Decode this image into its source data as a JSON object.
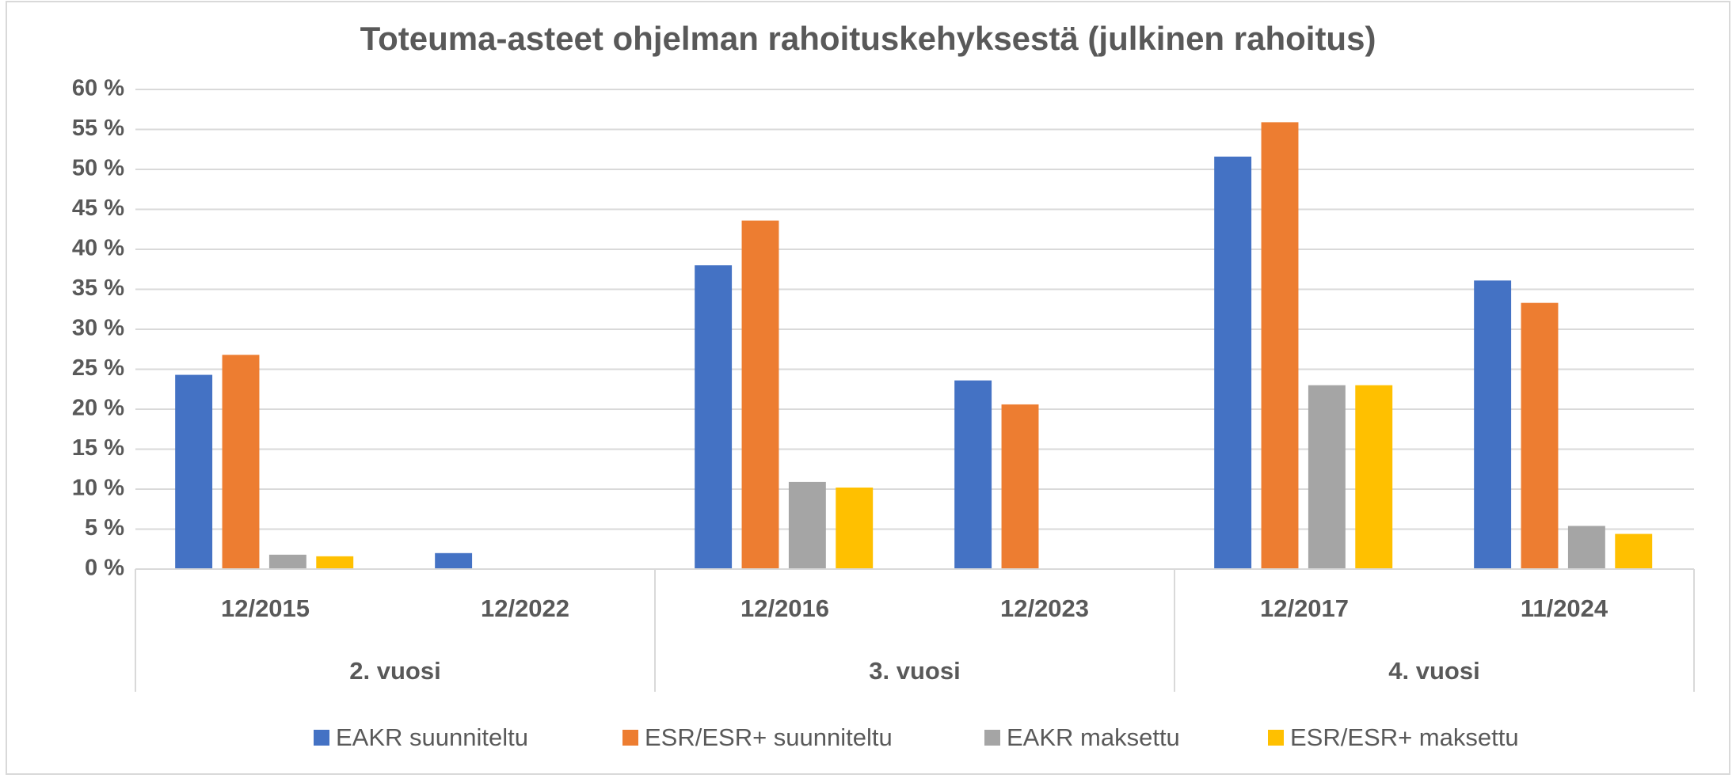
{
  "chart_data": {
    "type": "bar",
    "title": "Toteuma-asteet ohjelman rahoituskehyksestä (julkinen rahoitus)",
    "categories": [
      "12/2015",
      "12/2022",
      "12/2016",
      "12/2023",
      "12/2017",
      "11/2024"
    ],
    "groups": [
      "2. vuosi",
      "3. vuosi",
      "4. vuosi"
    ],
    "series": [
      {
        "name": "EAKR suunniteltu",
        "color": "#4472c4",
        "values": [
          24.3,
          2.0,
          38.0,
          23.6,
          51.6,
          36.1
        ]
      },
      {
        "name": "ESR/ESR+ suunniteltu",
        "color": "#ed7d31",
        "values": [
          26.8,
          null,
          43.6,
          20.6,
          55.9,
          33.3
        ]
      },
      {
        "name": "EAKR maksettu",
        "color": "#a5a5a5",
        "values": [
          1.8,
          null,
          10.9,
          null,
          23.0,
          5.4
        ]
      },
      {
        "name": "ESR/ESR+ maksettu",
        "color": "#ffc000",
        "values": [
          1.6,
          null,
          10.2,
          null,
          23.0,
          4.4
        ]
      }
    ],
    "ylim": [
      0,
      60
    ],
    "yticks": [
      {
        "value": 0,
        "label": "0 %"
      },
      {
        "value": 5,
        "label": "5 %"
      },
      {
        "value": 10,
        "label": "10 %"
      },
      {
        "value": 15,
        "label": "15 %"
      },
      {
        "value": 20,
        "label": "20 %"
      },
      {
        "value": 25,
        "label": "25 %"
      },
      {
        "value": 30,
        "label": "30 %"
      },
      {
        "value": 35,
        "label": "35 %"
      },
      {
        "value": 40,
        "label": "40 %"
      },
      {
        "value": 45,
        "label": "45 %"
      },
      {
        "value": 50,
        "label": "50 %"
      },
      {
        "value": 55,
        "label": "55 %"
      },
      {
        "value": 60,
        "label": "60 %"
      }
    ],
    "grid": true,
    "legend": "bottom"
  }
}
